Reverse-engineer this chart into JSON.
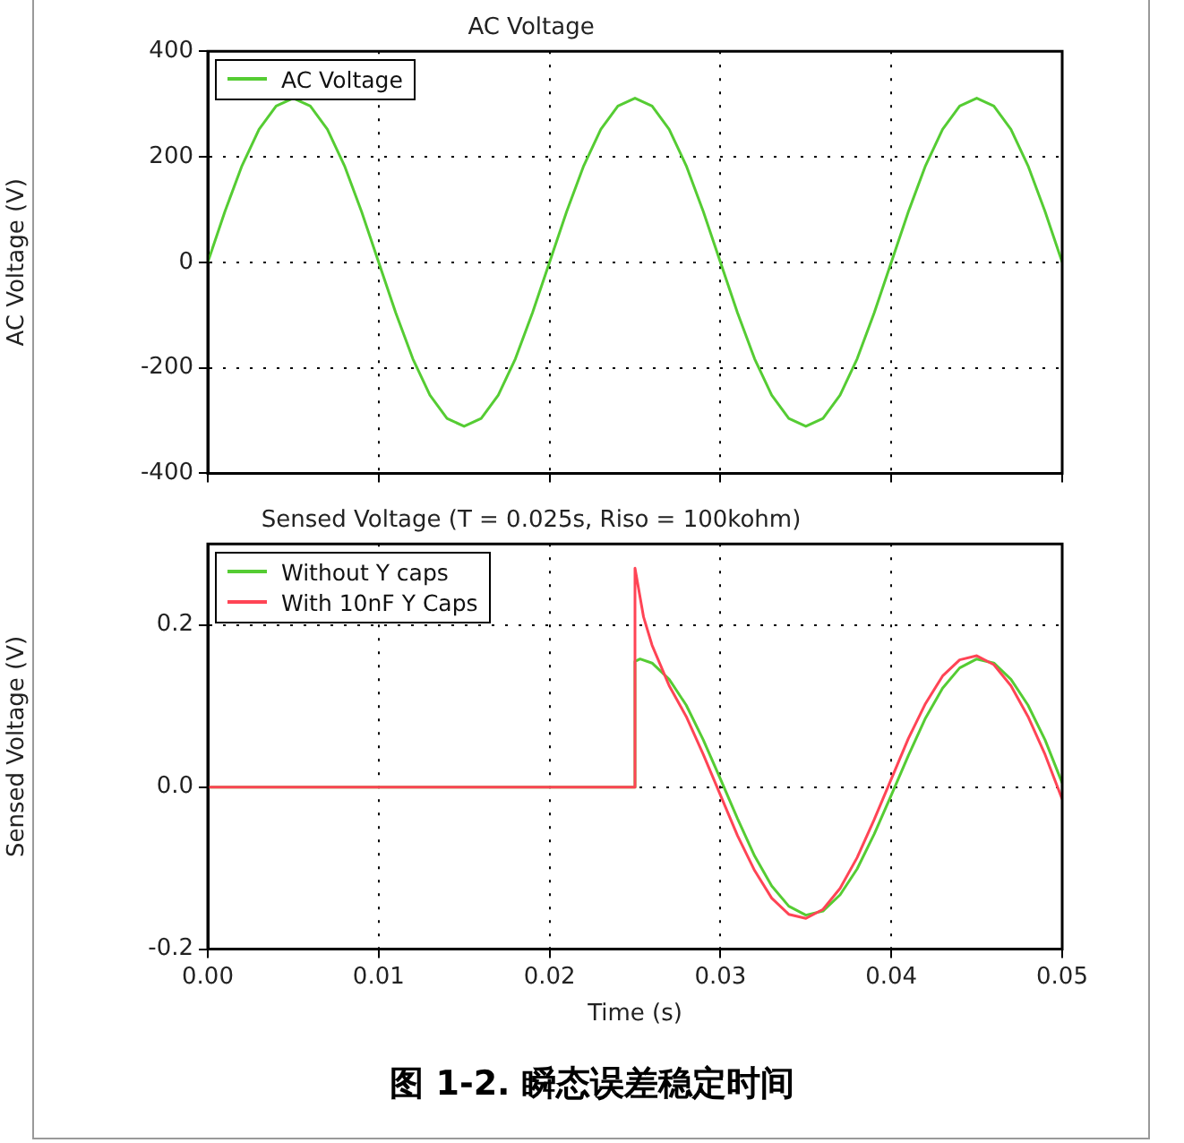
{
  "chart_data": [
    {
      "type": "line",
      "title": "AC Voltage",
      "ylabel": "AC Voltage (V)",
      "legend": "top left",
      "grid": true,
      "tick_labels": "y",
      "x": [
        0,
        0.001,
        0.002,
        0.003,
        0.004,
        0.005,
        0.006,
        0.007,
        0.008,
        0.009,
        0.01,
        0.011,
        0.012,
        0.013,
        0.014,
        0.015,
        0.016,
        0.017,
        0.018,
        0.019,
        0.02,
        0.021,
        0.022,
        0.023,
        0.024,
        0.025,
        0.026,
        0.027,
        0.028,
        0.029,
        0.03,
        0.031,
        0.032,
        0.033,
        0.034,
        0.035,
        0.036,
        0.037,
        0.038,
        0.039,
        0.04,
        0.041,
        0.042,
        0.043,
        0.044,
        0.045,
        0.046,
        0.047,
        0.048,
        0.049,
        0.05
      ],
      "series": [
        {
          "name": "AC Voltage",
          "color": "#55cc33",
          "values": [
            0,
            96,
            183,
            252,
            296,
            311,
            296,
            252,
            183,
            96,
            0,
            -96,
            -183,
            -252,
            -296,
            -311,
            -296,
            -252,
            -183,
            -96,
            0,
            96,
            183,
            252,
            296,
            311,
            296,
            252,
            183,
            96,
            0,
            -96,
            -183,
            -252,
            -296,
            -311,
            -296,
            -252,
            -183,
            -96,
            0,
            96,
            183,
            252,
            296,
            311,
            296,
            252,
            183,
            96,
            0
          ]
        }
      ],
      "xlim": [
        0,
        0.05
      ],
      "xticks": [
        0,
        0.01,
        0.02,
        0.03,
        0.04,
        0.05
      ],
      "ylim": [
        -400,
        400
      ],
      "yticks": [
        -400,
        -200,
        0,
        200,
        400
      ]
    },
    {
      "type": "line",
      "title": "Sensed Voltage (T = 0.025s, Riso = 100kohm)",
      "xlabel": "Time (s)",
      "ylabel": "Sensed Voltage (V)",
      "legend": "top left",
      "grid": true,
      "series": [
        {
          "name": "Without Y caps",
          "color": "#55cc33",
          "x": [
            0,
            0.025,
            0.025,
            0.0253,
            0.026,
            0.027,
            0.028,
            0.029,
            0.03,
            0.031,
            0.032,
            0.033,
            0.034,
            0.035,
            0.036,
            0.037,
            0.038,
            0.039,
            0.04,
            0.041,
            0.042,
            0.043,
            0.044,
            0.045,
            0.046,
            0.047,
            0.048,
            0.049,
            0.05
          ],
          "values": [
            0,
            0,
            0.155,
            0.158,
            0.153,
            0.133,
            0.101,
            0.058,
            0.01,
            -0.039,
            -0.085,
            -0.122,
            -0.147,
            -0.158,
            -0.153,
            -0.133,
            -0.101,
            -0.058,
            -0.01,
            0.039,
            0.085,
            0.122,
            0.147,
            0.158,
            0.153,
            0.133,
            0.101,
            0.058,
            0.005
          ]
        },
        {
          "name": "With 10nF Y Caps",
          "color": "#ff4455",
          "x": [
            0,
            0.025,
            0.025,
            0.0255,
            0.026,
            0.0265,
            0.027,
            0.028,
            0.029,
            0.03,
            0.031,
            0.032,
            0.033,
            0.034,
            0.035,
            0.036,
            0.037,
            0.038,
            0.039,
            0.04,
            0.041,
            0.042,
            0.043,
            0.044,
            0.045,
            0.046,
            0.047,
            0.048,
            0.049,
            0.05
          ],
          "values": [
            0,
            0,
            0.27,
            0.21,
            0.175,
            0.15,
            0.125,
            0.087,
            0.04,
            -0.01,
            -0.06,
            -0.103,
            -0.137,
            -0.157,
            -0.162,
            -0.151,
            -0.125,
            -0.087,
            -0.04,
            0.01,
            0.06,
            0.103,
            0.137,
            0.157,
            0.162,
            0.151,
            0.125,
            0.087,
            0.04,
            -0.015
          ]
        }
      ],
      "xlim": [
        0,
        0.05
      ],
      "xticks": [
        {
          "value": 0,
          "label": "0.00"
        },
        0.01,
        0.02,
        0.03,
        0.04,
        0.05
      ],
      "ylim": [
        -0.2,
        0.3
      ],
      "yticks": [
        -0.2,
        {
          "value": 0,
          "label": "0.0"
        },
        0.2
      ],
      "annotations": [
        "图 1-2. 瞬态误差稳定时间"
      ]
    }
  ]
}
